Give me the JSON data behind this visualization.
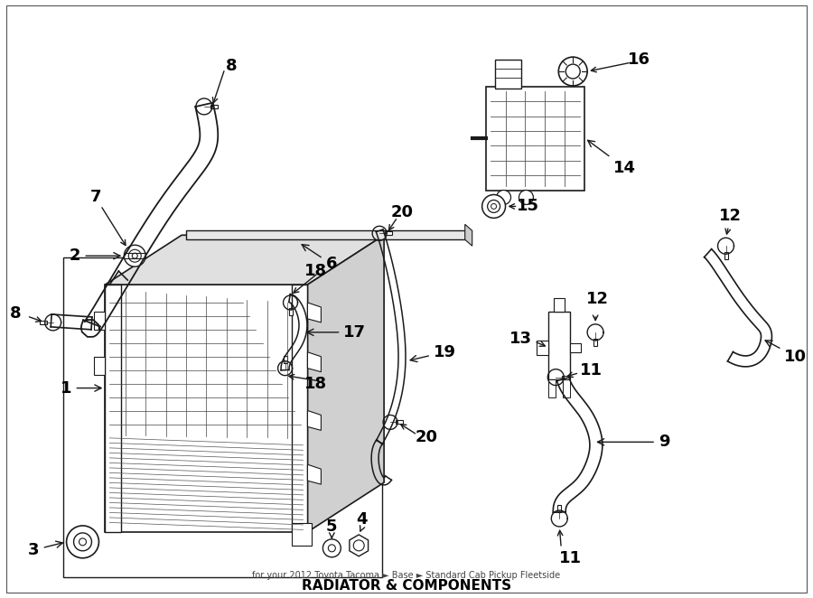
{
  "bg_color": "#ffffff",
  "line_color": "#1a1a1a",
  "text_color": "#000000",
  "fig_width": 9.0,
  "fig_height": 6.62,
  "dpi": 100,
  "title": "RADIATOR & COMPONENTS",
  "subtitle": "for your 2012 Toyota Tacoma ► Base ► Standard Cab Pickup Fleetside"
}
